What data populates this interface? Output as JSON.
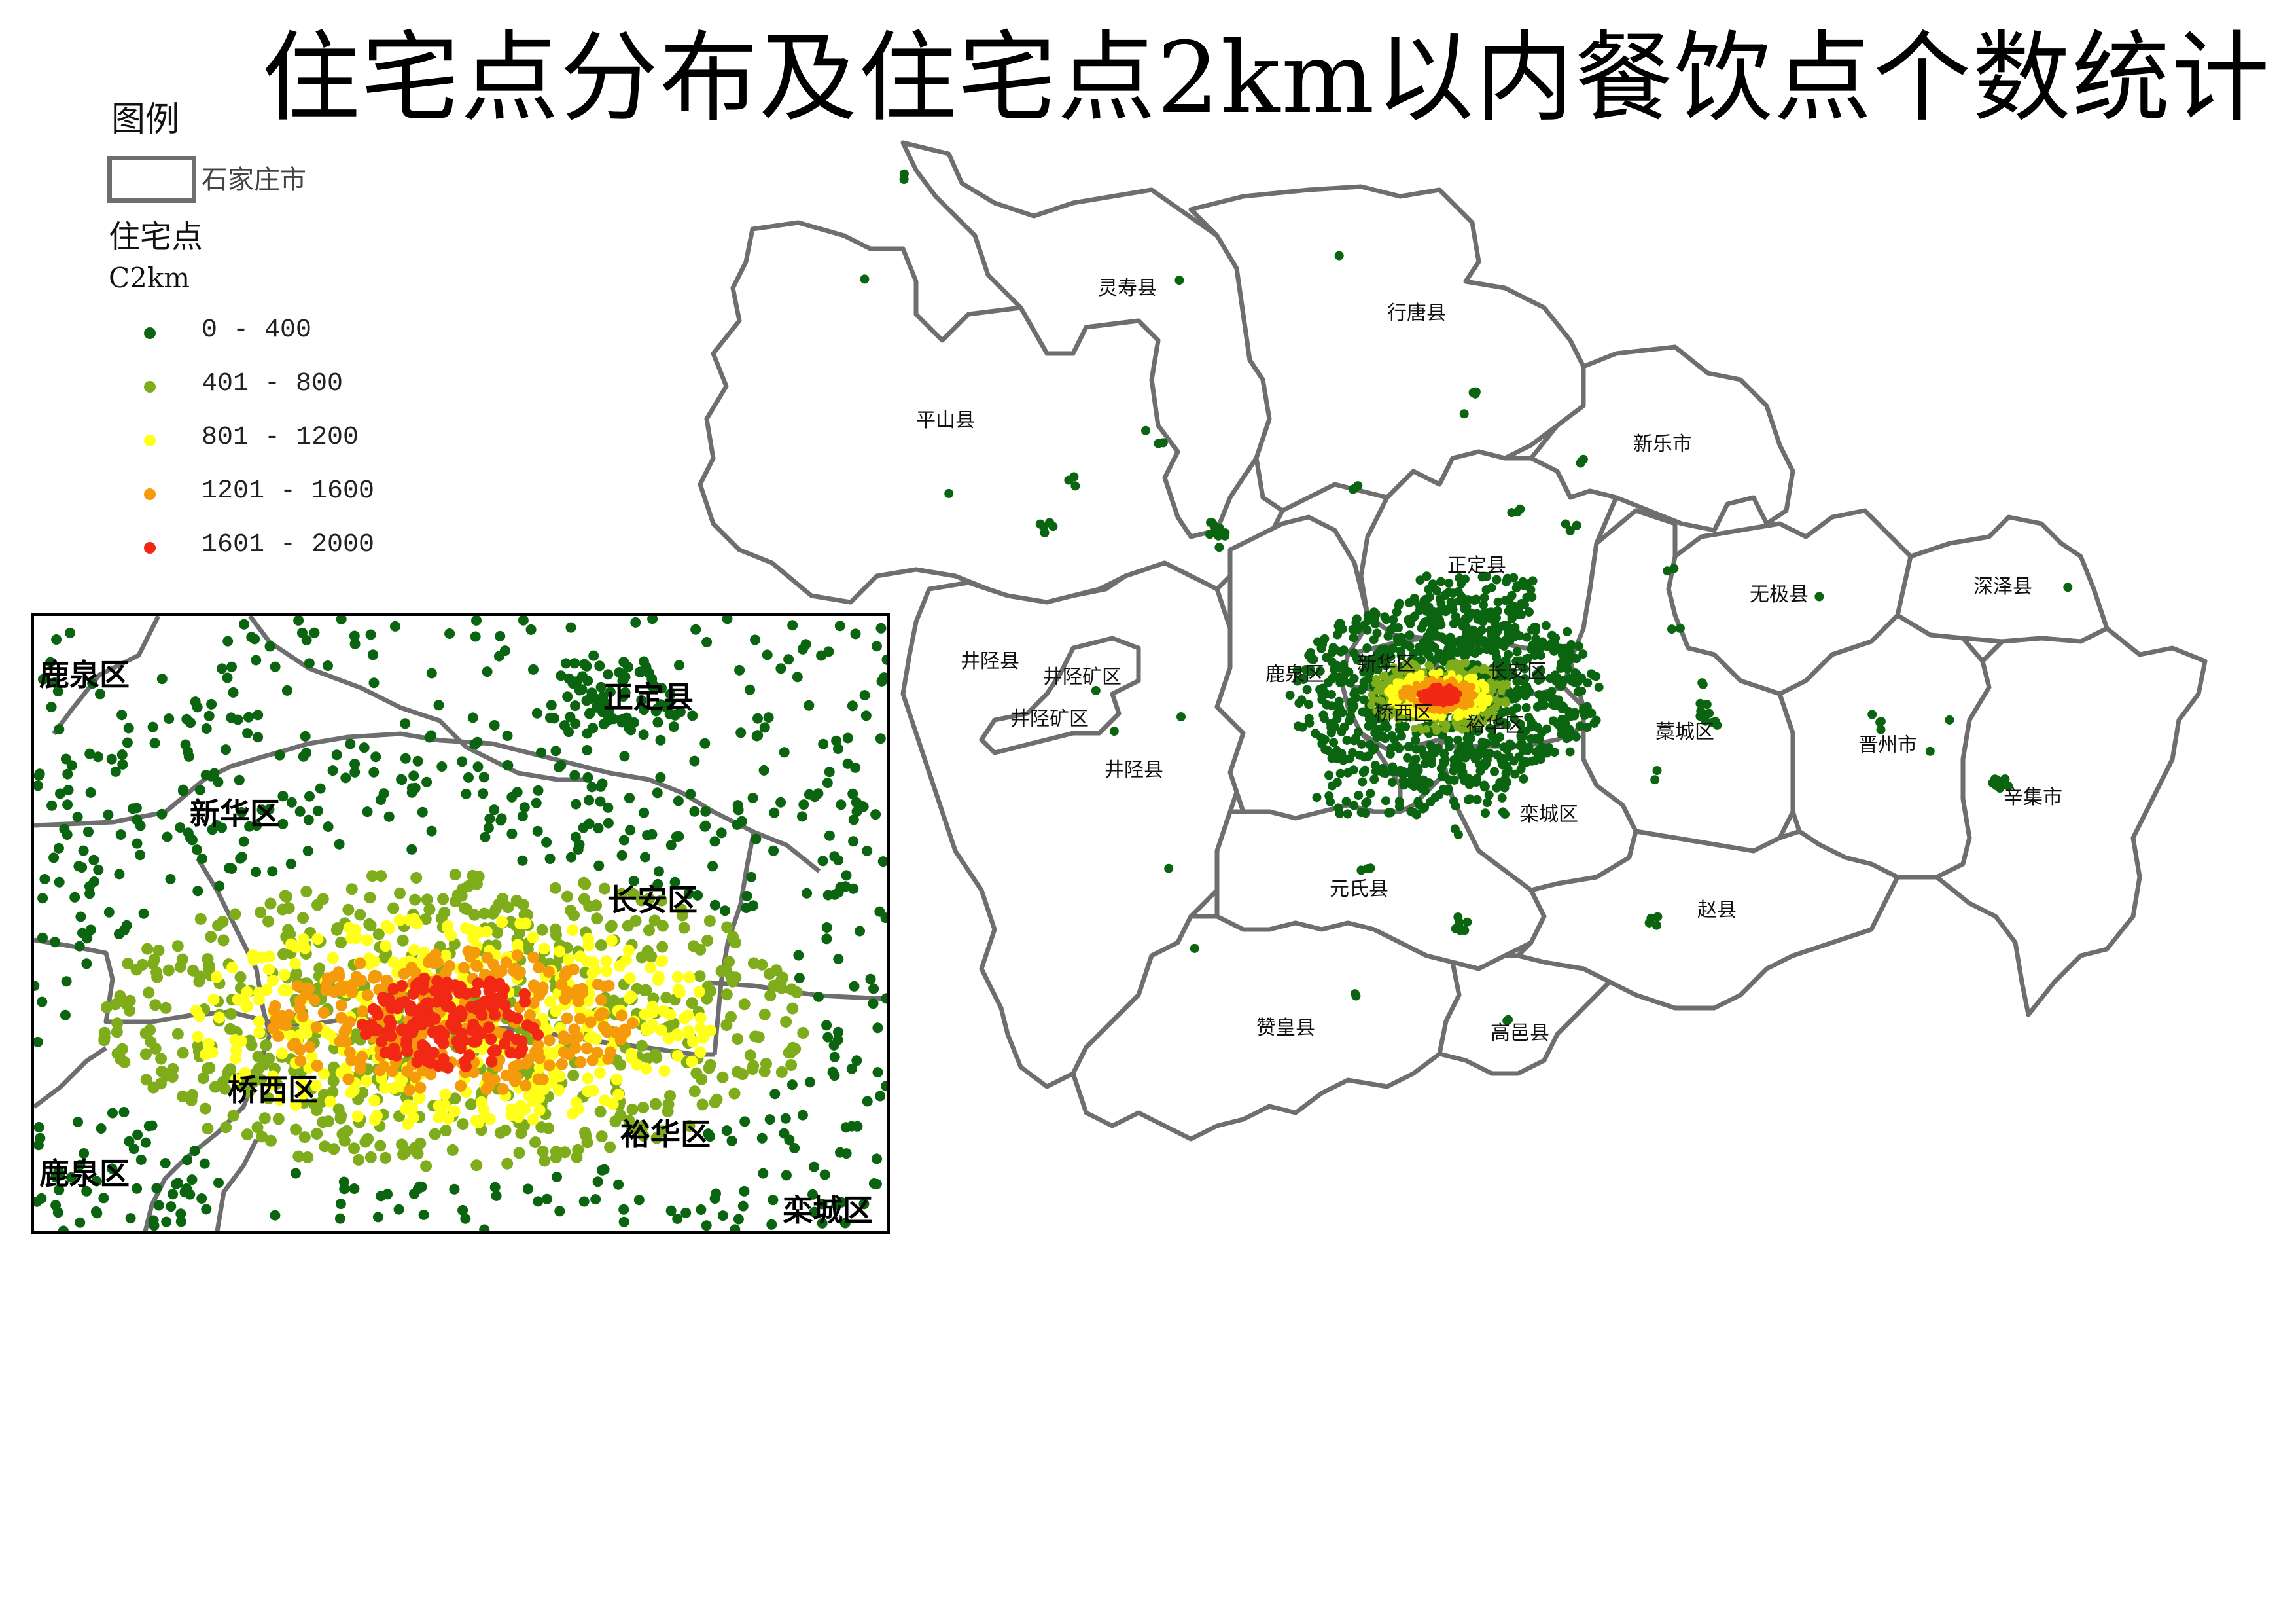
{
  "title": "住宅点分布及住宅点2km以内餐饮点个数统计",
  "legend": {
    "heading": "图例",
    "boundary_label": "石家庄市",
    "points_title": "住宅点",
    "field": "C2km",
    "classes": [
      {
        "label": "0 - 400",
        "color": "#0a6410"
      },
      {
        "label": "401 - 800",
        "color": "#7fac1a"
      },
      {
        "label": "801 - 1200",
        "color": "#ffff1a"
      },
      {
        "label": "1201 - 1600",
        "color": "#f59a0a"
      },
      {
        "label": "1601 - 2000",
        "color": "#f02814"
      }
    ]
  },
  "colors": {
    "boundary": "#6e6e6e",
    "fill": "#ffffff"
  },
  "map_labels": {
    "lingshou": "灵寿县",
    "xingtang": "行唐县",
    "pingshan": "平山县",
    "xinle": "新乐市",
    "zhengding": "正定县",
    "wuji": "无极县",
    "shenze": "深泽县",
    "jingxing": "井陉县",
    "jingxingkuang": "井陉矿区",
    "jingxingkuang2": "井陉矿区",
    "jingxing2": "井陉县",
    "luquan": "鹿泉区",
    "xinhua": "新华区",
    "changan": "长安区",
    "qiaoxi": "桥西区",
    "yuhua": "裕华区",
    "gaocheng": "藁城区",
    "jinzhou": "晋州市",
    "xinji": "辛集市",
    "luancheng": "栾城区",
    "yuanshi": "元氏县",
    "zhaoxian": "赵县",
    "zanhuang": "赞皇县",
    "gaoyi": "高邑县"
  },
  "inset_labels": {
    "luquan_top": "鹿泉区",
    "zhengding": "正定县",
    "xinhua": "新华区",
    "changan": "长安区",
    "qiaoxi": "桥西区",
    "yuhua": "裕华区",
    "luquan_bottom": "鹿泉区",
    "luancheng": "栾城区"
  }
}
